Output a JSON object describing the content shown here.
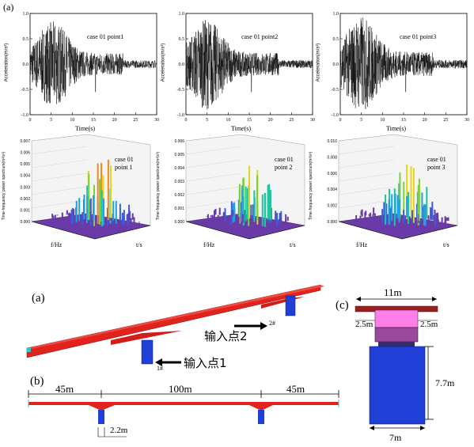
{
  "top_figure": {
    "panel_label": "(a)",
    "time_plots": [
      {
        "title": "case 01  point1",
        "ylabel": "Acceleration(m/s²)",
        "xlabel": "Time(s)"
      },
      {
        "title": "case 01  point2",
        "ylabel": "Acceleration(m/s²)",
        "xlabel": "Time(s)"
      },
      {
        "title": "case 01  point3",
        "ylabel": "Acceleration(m/s²)",
        "xlabel": "Time(s)"
      }
    ],
    "spectrum_plots": [
      {
        "case": "case 01",
        "point": "point 1",
        "zlabel": "Time-frequency power spectrum(m²/s³)",
        "flabel": "f/Hz",
        "tlabel": "t/s",
        "zticks": [
          "0.000",
          "0.001",
          "0.002",
          "0.003",
          "0.004",
          "0.005",
          "0.006",
          "0.007"
        ]
      },
      {
        "case": "case 01",
        "point": "point 2",
        "zlabel": "Time-frequency power spectrum(m²/s³)",
        "flabel": "f/Hz",
        "tlabel": "t/s",
        "zticks": [
          "0.000",
          "0.001",
          "0.002",
          "0.003",
          "0.004",
          "0.005",
          "0.006"
        ]
      },
      {
        "case": "case 01",
        "point": "point 3",
        "zlabel": "Time-frequency power spectrum(m²/s³)",
        "flabel": "f/Hz",
        "tlabel": "t/s",
        "zticks": [
          "0.000",
          "0.002",
          "0.004",
          "0.006",
          "0.008",
          "0.010"
        ]
      }
    ]
  },
  "chart_data": [
    {
      "type": "line",
      "title": "case 01  point1",
      "xlabel": "Time(s)",
      "ylabel": "Acceleration(m/s²)",
      "xlim": [
        0,
        30
      ],
      "ylim": [
        -1.0,
        1.0
      ],
      "xticks": [
        0,
        5,
        10,
        15,
        20,
        25,
        30
      ],
      "yticks": [
        -1.0,
        -0.5,
        0.0,
        0.5,
        1.0
      ],
      "peak_time": 5.5,
      "peak_amp": 0.85
    },
    {
      "type": "line",
      "title": "case 01  point2",
      "xlabel": "Time(s)",
      "ylabel": "Acceleration(m/s²)",
      "xlim": [
        0,
        30
      ],
      "ylim": [
        -1.0,
        1.0
      ],
      "xticks": [
        0,
        5,
        10,
        15,
        20,
        25,
        30
      ],
      "yticks": [
        -1.0,
        -0.5,
        0.0,
        0.5,
        1.0
      ],
      "peak_time": 5.0,
      "peak_amp": 0.9
    },
    {
      "type": "line",
      "title": "case 01  point3",
      "xlabel": "Time(s)",
      "ylabel": "Acceleration(m/s²)",
      "xlim": [
        0,
        30
      ],
      "ylim": [
        -1.0,
        1.0
      ],
      "xticks": [
        0,
        5,
        10,
        15,
        20,
        25,
        30
      ],
      "yticks": [
        -1.0,
        -0.5,
        0.0,
        0.5,
        1.0
      ],
      "peak_time": 5.0,
      "peak_amp": 0.95
    }
  ],
  "bridge": {
    "label_a": "(a)",
    "label_b": "(b)",
    "label_c": "(c)",
    "input_point_1": "输入点1",
    "input_point_2": "输入点2",
    "mark_1": "1#",
    "mark_2": "2#",
    "span_left": "45m",
    "span_mid": "100m",
    "span_right": "45m",
    "pier_width": "2.2m",
    "deck_width": "11m",
    "cantilever_left": "2.5m",
    "cantilever_right": "2.5m",
    "pier_height": "7.7m",
    "pier_base": "7m",
    "colors": {
      "deck": "#e0231c",
      "pier": "#1f3fd6",
      "pink": "#ff7fe8",
      "purple": "#9a4a9a"
    }
  }
}
